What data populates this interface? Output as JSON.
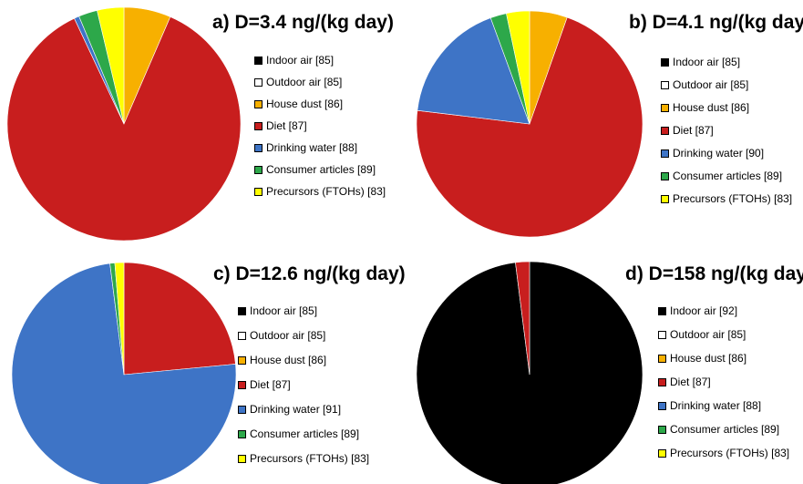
{
  "chart_data": [
    {
      "type": "pie",
      "title": "a) D=3.4 ng/(kg day)",
      "categories": [
        "Indoor air [85]",
        "Outdoor air [85]",
        "House dust [86]",
        "Diet [87]",
        "Drinking water [88]",
        "Consumer articles [89]",
        "Precursors (FTOHs) [83]"
      ],
      "values": [
        0.0,
        0.0,
        6.5,
        86.5,
        0.7,
        2.6,
        3.7
      ],
      "colors": [
        "#000000",
        "#ffffff",
        "#f7b000",
        "#c81e1e",
        "#3e74c6",
        "#2da84a",
        "#ffff00"
      ]
    },
    {
      "type": "pie",
      "title": "b) D=4.1 ng/(kg day)",
      "categories": [
        "Indoor air [85]",
        "Outdoor air [85]",
        "House dust [86]",
        "Diet [87]",
        "Drinking water [90]",
        "Consumer articles [89]",
        "Precursors (FTOHs) [83]"
      ],
      "values": [
        0.0,
        0.0,
        5.4,
        71.5,
        17.5,
        2.3,
        3.3
      ],
      "colors": [
        "#000000",
        "#ffffff",
        "#f7b000",
        "#c81e1e",
        "#3e74c6",
        "#2da84a",
        "#ffff00"
      ]
    },
    {
      "type": "pie",
      "title": "c) D=12.6 ng/(kg day)",
      "categories": [
        "Indoor air [85]",
        "Outdoor air [85]",
        "House dust [86]",
        "Diet [87]",
        "Drinking water [91]",
        "Consumer articles [89]",
        "Precursors (FTOHs) [83]"
      ],
      "values": [
        0.0,
        0.0,
        0.0,
        23.5,
        74.5,
        0.7,
        1.3
      ],
      "colors": [
        "#000000",
        "#ffffff",
        "#f7b000",
        "#c81e1e",
        "#3e74c6",
        "#2da84a",
        "#ffff00"
      ]
    },
    {
      "type": "pie",
      "title": "d) D=158 ng/(kg day)",
      "categories": [
        "Indoor air [92]",
        "Outdoor air [85]",
        "House dust [86]",
        "Diet [87]",
        "Drinking water [88]",
        "Consumer articles [89]",
        "Precursors (FTOHs) [83]"
      ],
      "values": [
        98.0,
        0.0,
        0.0,
        2.0,
        0.0,
        0.0,
        0.0
      ],
      "colors": [
        "#000000",
        "#ffffff",
        "#f7b000",
        "#c81e1e",
        "#3e74c6",
        "#2da84a",
        "#ffff00"
      ]
    }
  ]
}
